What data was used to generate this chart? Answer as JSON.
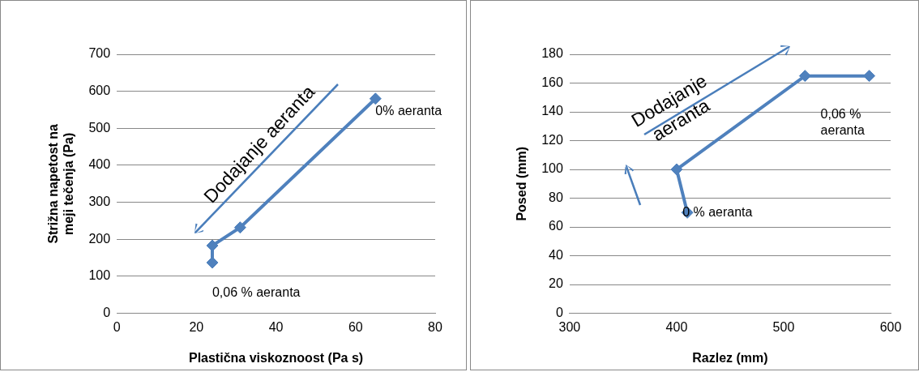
{
  "chart_data": [
    {
      "type": "scatter",
      "xlabel": "Plastična viskoznoost (Pa s)",
      "ylabel": "Strižna napetost na meji tečenja (Pa)",
      "series": [
        {
          "color": "#4f81bd",
          "x": [
            65,
            31,
            24,
            24
          ],
          "values": [
            580,
            232,
            183,
            137
          ]
        }
      ],
      "xlim": [
        0,
        80
      ],
      "xticks": [
        0,
        20,
        40,
        60,
        80
      ],
      "ylim": [
        0,
        700
      ],
      "yticks": [
        0,
        100,
        200,
        300,
        400,
        500,
        600,
        700
      ],
      "grid": "y",
      "legend": false,
      "marker": "diamond",
      "line_style": "solid",
      "annotations": [
        "Dodajanje aeranta",
        {
          "text": "0% aeranta",
          "x": 65,
          "y": 580
        },
        {
          "text": "0,06 % aeranta",
          "x": 24,
          "y": 137
        }
      ]
    },
    {
      "type": "scatter",
      "xlabel": "Razlez (mm)",
      "ylabel": "Posed (mm)",
      "series": [
        {
          "color": "#4f81bd",
          "x": [
            410,
            400,
            520,
            580
          ],
          "values": [
            70,
            100,
            165,
            165
          ]
        }
      ],
      "xlim": [
        300,
        600
      ],
      "xticks": [
        300,
        400,
        500,
        600
      ],
      "ylim": [
        0,
        180
      ],
      "yticks": [
        0,
        20,
        40,
        60,
        80,
        100,
        120,
        140,
        160,
        180
      ],
      "grid": "y",
      "legend": false,
      "marker": "diamond",
      "line_style": "solid",
      "annotations": [
        "Dodajanje aeranta",
        {
          "text": "0 % aeranta",
          "x": 410,
          "y": 70
        },
        {
          "text": "0,06 % aeranta",
          "x": 580,
          "y": 165
        }
      ]
    }
  ]
}
